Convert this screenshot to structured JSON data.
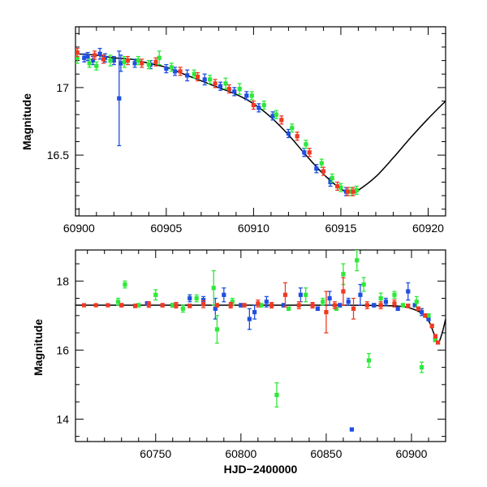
{
  "chart_data": [
    {
      "type": "scatter",
      "title": "",
      "xlabel": "",
      "ylabel": "Magnitude",
      "xlim": [
        60899.8,
        60921
      ],
      "ylim": [
        17.45,
        16.05
      ],
      "y_inverted": true,
      "grid": false,
      "x_ticks": [
        60900,
        60905,
        60910,
        60915,
        60920
      ],
      "x_tick_labels": [
        "60900",
        "60905",
        "60910",
        "60915",
        "60920"
      ],
      "y_ticks": [
        16.5,
        17
      ],
      "y_tick_labels": [
        "16.5",
        "17"
      ],
      "colors": {
        "blue": "#1f4fe0",
        "green": "#2ee83a",
        "red": "#f03a24",
        "model": "#000000"
      },
      "model_curve": {
        "x": [
          60899.8,
          60901,
          60902,
          60903,
          60904,
          60905,
          60906,
          60907,
          60908,
          60909,
          60910,
          60911,
          60912,
          60913,
          60914,
          60915,
          60915.6,
          60916,
          60917,
          60918,
          60919,
          60920,
          60921
        ],
        "y": [
          17.25,
          17.24,
          17.22,
          17.21,
          17.18,
          17.15,
          17.1,
          17.05,
          17.0,
          16.95,
          16.88,
          16.78,
          16.65,
          16.5,
          16.36,
          16.25,
          16.22,
          16.24,
          16.34,
          16.48,
          16.63,
          16.77,
          16.9
        ]
      },
      "series": [
        {
          "color": "blue",
          "x": [
            60900.3,
            60900.5,
            60900.8,
            60901.2,
            60901.5,
            60902.0,
            60902.3,
            60902.4,
            60903.2,
            60904.1,
            60905.0,
            60905.5,
            60906.2,
            60907.2,
            60908.1,
            60908.9,
            60909.6,
            60910.3,
            60911.1,
            60912.0,
            60912.9,
            60913.6,
            60914.4,
            60915.3
          ],
          "y": [
            17.22,
            17.23,
            17.2,
            17.25,
            17.22,
            17.2,
            16.92,
            17.18,
            17.18,
            17.17,
            17.14,
            17.12,
            17.09,
            17.06,
            17.01,
            16.97,
            16.94,
            16.85,
            16.79,
            16.66,
            16.52,
            16.4,
            16.3,
            16.23
          ],
          "err": [
            0.03,
            0.03,
            0.03,
            0.04,
            0.03,
            0.03,
            0.35,
            0.06,
            0.03,
            0.03,
            0.03,
            0.03,
            0.04,
            0.04,
            0.03,
            0.03,
            0.03,
            0.03,
            0.03,
            0.03,
            0.03,
            0.03,
            0.03,
            0.03
          ]
        },
        {
          "color": "green",
          "x": [
            60899.9,
            60900.6,
            60901.0,
            60901.8,
            60902.6,
            60903.4,
            60904.0,
            60904.6,
            60905.3,
            60906.6,
            60907.5,
            60908.4,
            60909.2,
            60909.9,
            60910.6,
            60911.3,
            60912.2,
            60913.0,
            60913.9,
            60914.5,
            60915.0,
            60915.6,
            60915.9
          ],
          "y": [
            17.22,
            17.18,
            17.16,
            17.2,
            17.19,
            17.2,
            17.17,
            17.22,
            17.15,
            17.1,
            17.06,
            17.03,
            16.99,
            16.94,
            16.87,
            16.8,
            16.7,
            16.58,
            16.44,
            16.33,
            16.26,
            16.23,
            16.24
          ],
          "err": [
            0.04,
            0.03,
            0.03,
            0.04,
            0.04,
            0.03,
            0.03,
            0.05,
            0.03,
            0.03,
            0.03,
            0.04,
            0.04,
            0.03,
            0.03,
            0.03,
            0.03,
            0.03,
            0.03,
            0.03,
            0.03,
            0.03,
            0.03
          ]
        },
        {
          "color": "red",
          "x": [
            60899.9,
            60900.9,
            60901.4,
            60902.8,
            60903.6,
            60904.4,
            60905.8,
            60906.8,
            60907.8,
            60908.6,
            60910.0,
            60911.6,
            60912.5,
            60913.2,
            60914.0,
            60914.8,
            60915.4,
            60915.7
          ],
          "y": [
            17.26,
            17.24,
            17.21,
            17.2,
            17.18,
            17.19,
            17.12,
            17.08,
            17.03,
            16.99,
            16.87,
            16.76,
            16.64,
            16.52,
            16.38,
            16.27,
            16.23,
            16.23
          ],
          "err": [
            0.03,
            0.03,
            0.03,
            0.03,
            0.03,
            0.03,
            0.03,
            0.03,
            0.03,
            0.03,
            0.03,
            0.03,
            0.03,
            0.03,
            0.03,
            0.03,
            0.03,
            0.03
          ]
        }
      ]
    },
    {
      "type": "scatter",
      "title": "",
      "xlabel": "HJD−2400000",
      "ylabel": "Magnitude",
      "xlim": [
        60703,
        60920
      ],
      "ylim": [
        18.9,
        13.35
      ],
      "y_inverted": true,
      "grid": false,
      "x_ticks": [
        60750,
        60800,
        60850,
        60900
      ],
      "x_tick_labels": [
        "60750",
        "60800",
        "60850",
        "60900"
      ],
      "y_ticks": [
        14,
        16,
        18
      ],
      "y_tick_labels": [
        "14",
        "16",
        "18"
      ],
      "colors": {
        "blue": "#1f4fe0",
        "green": "#2ee83a",
        "red": "#f03a24",
        "model": "#000000"
      },
      "model_curve": {
        "x": [
          60703,
          60720,
          60740,
          60760,
          60780,
          60800,
          60820,
          60840,
          60860,
          60880,
          60895,
          60905,
          60910,
          60913,
          60915.6,
          60918,
          60920
        ],
        "y": [
          17.3,
          17.3,
          17.3,
          17.3,
          17.3,
          17.3,
          17.3,
          17.3,
          17.3,
          17.29,
          17.26,
          17.1,
          16.85,
          16.5,
          16.22,
          16.5,
          16.9
        ]
      },
      "series": [
        {
          "color": "blue",
          "x": [
            60745,
            60760,
            60770,
            60778,
            60785,
            60790,
            60800,
            60805,
            60808,
            60815,
            60825,
            60835,
            60845,
            60852,
            60858,
            60863,
            60865,
            60870,
            60878,
            60885,
            60892,
            60898,
            60902,
            60906,
            60910,
            60914
          ],
          "y": [
            17.35,
            17.3,
            17.5,
            17.45,
            17.2,
            17.6,
            17.3,
            16.9,
            17.1,
            17.4,
            17.3,
            17.6,
            17.2,
            17.5,
            17.3,
            17.4,
            13.7,
            17.6,
            17.3,
            17.4,
            17.2,
            17.7,
            17.3,
            17.1,
            16.9,
            16.3
          ],
          "err": [
            0.05,
            0.05,
            0.1,
            0.1,
            0.3,
            0.2,
            0.05,
            0.3,
            0.2,
            0.15,
            0.05,
            0.2,
            0.05,
            0.2,
            0.05,
            0.1,
            0.04,
            0.3,
            0.05,
            0.1,
            0.05,
            0.25,
            0.05,
            0.1,
            0.05,
            0.05
          ]
        },
        {
          "color": "green",
          "x": [
            60728,
            60732,
            60740,
            60750,
            60760,
            60766,
            60774,
            60784,
            60786,
            60795,
            60812,
            60821,
            60828,
            60838,
            60848,
            60856,
            60860,
            60868,
            60872,
            60875,
            60882,
            60890,
            60895,
            60903,
            60906,
            60910,
            60914
          ],
          "y": [
            17.4,
            17.9,
            17.3,
            17.6,
            17.3,
            17.2,
            17.5,
            17.8,
            16.6,
            17.4,
            17.3,
            14.7,
            17.2,
            17.6,
            17.4,
            17.2,
            18.2,
            18.6,
            17.9,
            15.7,
            17.5,
            17.6,
            17.3,
            17.4,
            15.5,
            17.0,
            16.3
          ],
          "err": [
            0.1,
            0.1,
            0.05,
            0.15,
            0.05,
            0.1,
            0.1,
            0.5,
            0.4,
            0.1,
            0.05,
            0.35,
            0.05,
            0.2,
            0.1,
            0.05,
            0.3,
            0.3,
            0.2,
            0.2,
            0.15,
            0.1,
            0.05,
            0.15,
            0.15,
            0.05,
            0.05
          ]
        },
        {
          "color": "red",
          "x": [
            60708,
            60715,
            60722,
            60730,
            60738,
            60746,
            60754,
            60762,
            60770,
            60778,
            60786,
            60794,
            60802,
            60810,
            60818,
            60826,
            60834,
            60842,
            60850,
            60855,
            60860,
            60866,
            60874,
            60882,
            60890,
            60898,
            60904,
            60908,
            60912,
            60914,
            60915.5
          ],
          "y": [
            17.3,
            17.3,
            17.3,
            17.3,
            17.28,
            17.32,
            17.3,
            17.3,
            17.28,
            17.33,
            17.3,
            17.3,
            17.3,
            17.35,
            17.3,
            17.6,
            17.3,
            17.3,
            17.1,
            17.3,
            17.7,
            17.2,
            17.3,
            17.3,
            17.35,
            17.28,
            17.2,
            17.0,
            16.7,
            16.4,
            16.22
          ],
          "err": [
            0.03,
            0.03,
            0.03,
            0.05,
            0.05,
            0.08,
            0.05,
            0.08,
            0.05,
            0.1,
            0.05,
            0.08,
            0.05,
            0.1,
            0.08,
            0.35,
            0.1,
            0.08,
            0.6,
            0.1,
            0.4,
            0.3,
            0.1,
            0.1,
            0.1,
            0.05,
            0.05,
            0.05,
            0.05,
            0.05,
            0.04
          ]
        }
      ]
    }
  ]
}
